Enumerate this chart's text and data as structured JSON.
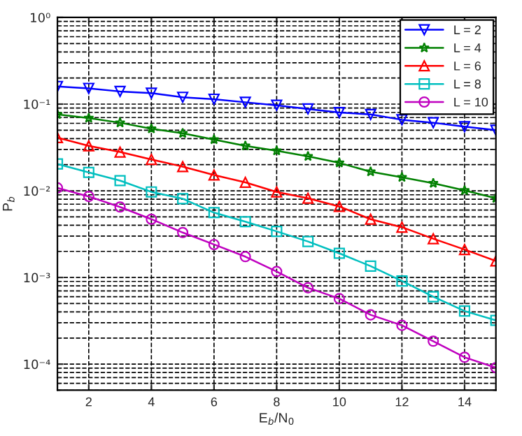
{
  "chart_data": {
    "type": "line",
    "xlabel": "E$_{b}$/N$_{0}$",
    "ylabel": "P$_{b}$",
    "x": [
      1,
      2,
      3,
      4,
      5,
      6,
      7,
      8,
      9,
      10,
      11,
      12,
      13,
      14,
      15
    ],
    "series": [
      {
        "name": "L = 2",
        "color": "#0000ff",
        "marker": "triangle_down",
        "values": [
          0.16,
          0.152,
          0.14,
          0.134,
          0.12,
          0.114,
          0.105,
          0.097,
          0.088,
          0.08,
          0.076,
          0.066,
          0.061,
          0.055,
          0.05
        ]
      },
      {
        "name": "L = 4",
        "color": "#008000",
        "marker": "star",
        "values": [
          0.076,
          0.069,
          0.061,
          0.052,
          0.046,
          0.039,
          0.033,
          0.029,
          0.025,
          0.021,
          0.0166,
          0.0143,
          0.0122,
          0.0101,
          0.0082
        ]
      },
      {
        "name": "L = 6",
        "color": "#ff0000",
        "marker": "triangle",
        "values": [
          0.041,
          0.033,
          0.028,
          0.023,
          0.019,
          0.0152,
          0.0125,
          0.0097,
          0.0082,
          0.0066,
          0.0047,
          0.0038,
          0.0028,
          0.0021,
          0.00155
        ]
      },
      {
        "name": "L = 8",
        "color": "#00bfbf",
        "marker": "square",
        "values": [
          0.0204,
          0.0163,
          0.0131,
          0.0097,
          0.0081,
          0.0056,
          0.0044,
          0.0034,
          0.0026,
          0.0019,
          0.00135,
          0.00091,
          0.0006,
          0.00041,
          0.00032
        ]
      },
      {
        "name": "L = 10",
        "color": "#bf00bf",
        "marker": "circle",
        "values": [
          0.0108,
          0.0086,
          0.0065,
          0.0047,
          0.0033,
          0.0024,
          0.00174,
          0.00117,
          0.00076,
          0.00057,
          0.00037,
          0.00028,
          0.000184,
          0.00012,
          9.1e-05
        ]
      }
    ],
    "log": "y",
    "xlim": [
      1,
      15
    ],
    "ylim": [
      5e-05,
      1
    ],
    "xticks": [
      2,
      4,
      6,
      8,
      10,
      12,
      14
    ],
    "yticks": [
      {
        "value": 0.0001,
        "label": "10⁻⁴"
      },
      {
        "value": 0.001,
        "label": "10⁻³"
      },
      {
        "value": 0.01,
        "label": "10⁻²"
      },
      {
        "value": 0.1,
        "label": "10⁻¹"
      },
      {
        "value": 1,
        "label": "10⁰"
      }
    ],
    "grid": true,
    "legend": "top right",
    "line_style": "solid"
  }
}
